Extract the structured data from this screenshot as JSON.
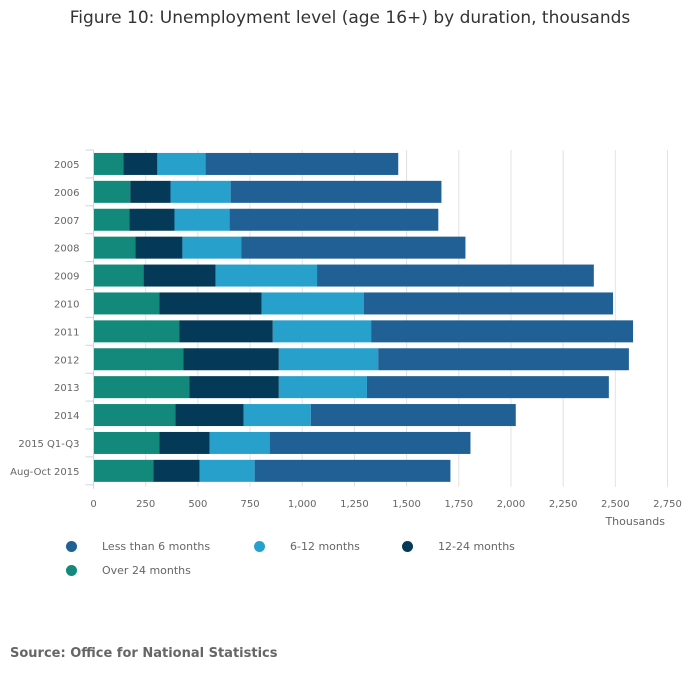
{
  "title": "Figure 10: Unemployment level (age 16+) by duration, thousands",
  "source": "Source: Office for National Statistics",
  "chart_data": {
    "type": "bar",
    "orientation": "horizontal",
    "stacked": true,
    "title": "Figure 10: Unemployment level (age 16+) by duration, thousands",
    "xlabel": "Thousands",
    "ylabel": "",
    "xlim": [
      0,
      2750
    ],
    "xticks": [
      0,
      250,
      500,
      750,
      1000,
      1250,
      1500,
      1750,
      2000,
      2250,
      2500,
      2750
    ],
    "xtick_labels": [
      "0",
      "250",
      "500",
      "750",
      "1,000",
      "1,250",
      "1,500",
      "1,750",
      "2,000",
      "2,250",
      "2,500",
      "2,750"
    ],
    "grid": true,
    "legend_position": "bottom",
    "categories": [
      "2005",
      "2006",
      "2007",
      "2008",
      "2009",
      "2010",
      "2011",
      "2012",
      "2013",
      "2014",
      "2015 Q1-Q3",
      "Aug-Oct 2015"
    ],
    "series": [
      {
        "name": "Over 24 months",
        "color": "#12897a",
        "values": [
          143,
          176,
          172,
          200,
          240,
          316,
          412,
          431,
          460,
          393,
          316,
          287
        ]
      },
      {
        "name": "12-24 months",
        "color": "#043a57",
        "values": [
          163,
          193,
          216,
          226,
          345,
          490,
          447,
          457,
          428,
          326,
          240,
          221
        ]
      },
      {
        "name": "6-12 months",
        "color": "#27a0cc",
        "values": [
          231,
          288,
          264,
          283,
          486,
          490,
          471,
          476,
          422,
          322,
          288,
          264
        ]
      },
      {
        "name": "Less than 6 months",
        "color": "#206095",
        "values": [
          923,
          1010,
          1000,
          1073,
          1326,
          1193,
          1255,
          1201,
          1159,
          982,
          962,
          938
        ]
      }
    ]
  },
  "legend": [
    {
      "label": "Less than 6 months",
      "color": "#206095"
    },
    {
      "label": "6-12 months",
      "color": "#27a0cc"
    },
    {
      "label": "12-24 months",
      "color": "#043a57"
    },
    {
      "label": "Over 24 months",
      "color": "#12897a"
    }
  ]
}
